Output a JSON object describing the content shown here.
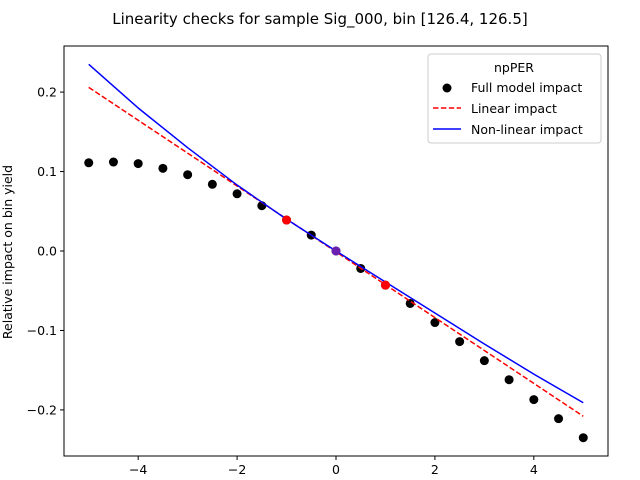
{
  "chart_data": {
    "type": "scatter",
    "title": "Linearity checks for sample Sig_000, bin [126.4, 126.5]",
    "xlabel": "",
    "ylabel": "Relative impact on bin yield",
    "xlim": [
      -5.5,
      5.5
    ],
    "ylim": [
      -0.258,
      0.258
    ],
    "xticks": [
      -4,
      -2,
      0,
      2,
      4
    ],
    "xtick_labels": [
      "−4",
      "−2",
      "0",
      "2",
      "4"
    ],
    "yticks": [
      -0.2,
      -0.1,
      0.0,
      0.1,
      0.2
    ],
    "ytick_labels": [
      "−0.2",
      "−0.1",
      "0.0",
      "0.1",
      "0.2"
    ],
    "grid": false,
    "legend": {
      "title": "npPER",
      "placement": "top-right",
      "entries": [
        "Full model impact",
        "Linear impact",
        "Non-linear impact"
      ]
    },
    "series": [
      {
        "name": "Full model impact",
        "kind": "scatter",
        "color": "#000000",
        "x": [
          -5.0,
          -4.5,
          -4.0,
          -3.5,
          -3.0,
          -2.5,
          -2.0,
          -1.5,
          -1.0,
          -0.5,
          0.0,
          0.5,
          1.0,
          1.5,
          2.0,
          2.5,
          3.0,
          3.5,
          4.0,
          4.5,
          5.0
        ],
        "y": [
          0.111,
          0.112,
          0.11,
          0.104,
          0.096,
          0.084,
          0.072,
          0.057,
          0.039,
          0.02,
          0.0,
          -0.022,
          -0.043,
          -0.066,
          -0.09,
          -0.114,
          -0.138,
          -0.162,
          -0.187,
          -0.211,
          -0.235
        ]
      },
      {
        "name": "Linear impact",
        "kind": "line",
        "style": "dashed",
        "color": "#ff0000",
        "x": [
          -5.0,
          5.0
        ],
        "y": [
          0.206,
          -0.208
        ]
      },
      {
        "name": "Non-linear impact",
        "kind": "line",
        "style": "solid",
        "color": "#0000ff",
        "x": [
          -5.0,
          -4.0,
          -3.0,
          -2.0,
          -1.0,
          0.0,
          1.0,
          2.0,
          3.0,
          4.0,
          5.0
        ],
        "y": [
          0.235,
          0.18,
          0.13,
          0.083,
          0.04,
          0.0,
          -0.039,
          -0.078,
          -0.117,
          -0.155,
          -0.191
        ]
      },
      {
        "name": "",
        "kind": "markers",
        "color": "#ff0000",
        "x": [
          -1.0,
          1.0
        ],
        "y": [
          0.039,
          -0.043
        ]
      },
      {
        "name": "",
        "kind": "markers",
        "color": "#6a1fb0",
        "x": [
          0.0
        ],
        "y": [
          0.0
        ]
      }
    ]
  }
}
